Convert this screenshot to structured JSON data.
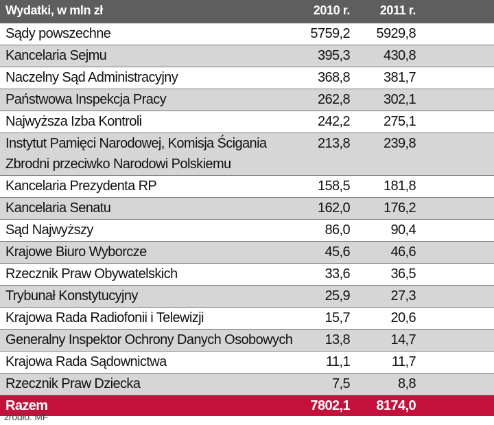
{
  "chart_data": {
    "type": "table",
    "columns": [
      "Wydatki, w mln zł",
      "2010 r.",
      "2011 r."
    ],
    "rows": [
      {
        "name": "Sądy powszechne",
        "v2010": "5759,2",
        "v2011": "5929,8"
      },
      {
        "name": "Kancelaria Sejmu",
        "v2010": "395,3",
        "v2011": "430,8"
      },
      {
        "name": "Naczelny Sąd Administracyjny",
        "v2010": "368,8",
        "v2011": "381,7"
      },
      {
        "name": "Państwowa Inspekcja Pracy",
        "v2010": "262,8",
        "v2011": "302,1"
      },
      {
        "name": "Najwyższa Izba Kontroli",
        "v2010": "242,2",
        "v2011": "275,1"
      },
      {
        "name": "Instytut Pamięci Narodowej, Komisja Ścigania Zbrodni przeciwko Narodowi Polskiemu",
        "v2010": "213,8",
        "v2011": "239,8"
      },
      {
        "name": "Kancelaria Prezydenta RP",
        "v2010": "158,5",
        "v2011": "181,8"
      },
      {
        "name": "Kancelaria Senatu",
        "v2010": "162,0",
        "v2011": "176,2"
      },
      {
        "name": "Sąd Najwyższy",
        "v2010": "86,0",
        "v2011": "90,4"
      },
      {
        "name": "Krajowe Biuro Wyborcze",
        "v2010": "45,6",
        "v2011": "46,6"
      },
      {
        "name": "Rzecznik Praw Obywatelskich",
        "v2010": "33,6",
        "v2011": "36,5"
      },
      {
        "name": "Trybunał Konstytucyjny",
        "v2010": "25,9",
        "v2011": "27,3"
      },
      {
        "name": "Krajowa Rada Radiofonii i Telewizji",
        "v2010": "15,7",
        "v2011": "20,6"
      },
      {
        "name": "Generalny Inspektor Ochrony Danych Osobowych",
        "v2010": "13,8",
        "v2011": "14,7"
      },
      {
        "name": "Krajowa Rada Sądownictwa",
        "v2010": "11,1",
        "v2011": "11,7"
      },
      {
        "name": "Rzecznik Praw Dziecka",
        "v2010": "7,5",
        "v2011": "8,8"
      }
    ],
    "total": {
      "name": "Razem",
      "v2010": "7802,1",
      "v2011": "8174,0"
    },
    "source": "źródło: MF"
  },
  "colors": {
    "header_bg": "#5e5e5e",
    "stripe_bg": "#d6d6d6",
    "total_bg": "#c5103c"
  }
}
